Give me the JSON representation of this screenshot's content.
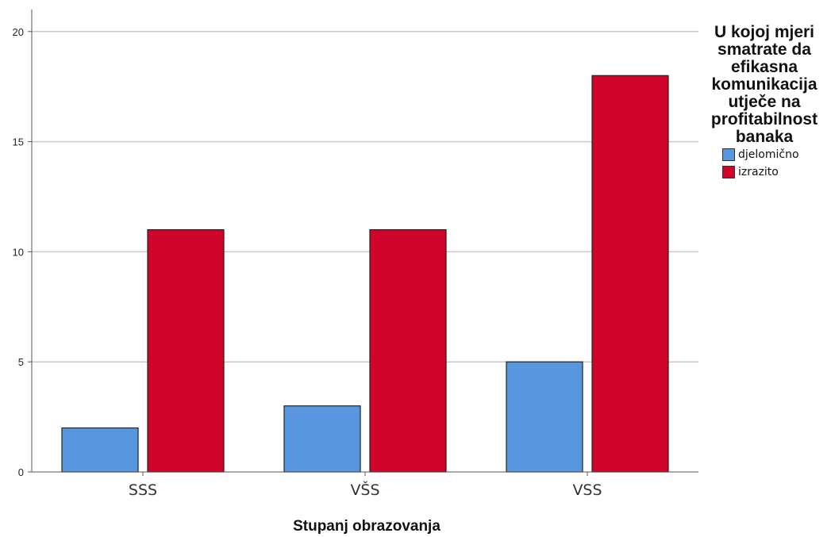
{
  "chart_data": {
    "type": "bar",
    "categories": [
      "SSS",
      "VŠS",
      "VSS"
    ],
    "series": [
      {
        "name": "djelomično",
        "color": "#5896e0",
        "values": [
          2,
          3,
          5
        ]
      },
      {
        "name": "izrazito",
        "color": "#d0032b",
        "values": [
          11,
          11,
          18
        ]
      }
    ],
    "xlabel": "Stupanj obrazovanja",
    "ylabel": "",
    "ylim": [
      0,
      21
    ],
    "yticks": [
      0,
      5,
      10,
      15,
      20
    ],
    "grid": true,
    "legend_title": "U kojoj mjeri smatrate da efikasna komunikacija utječe na profitabilnost banaka",
    "legend_position": "right"
  }
}
